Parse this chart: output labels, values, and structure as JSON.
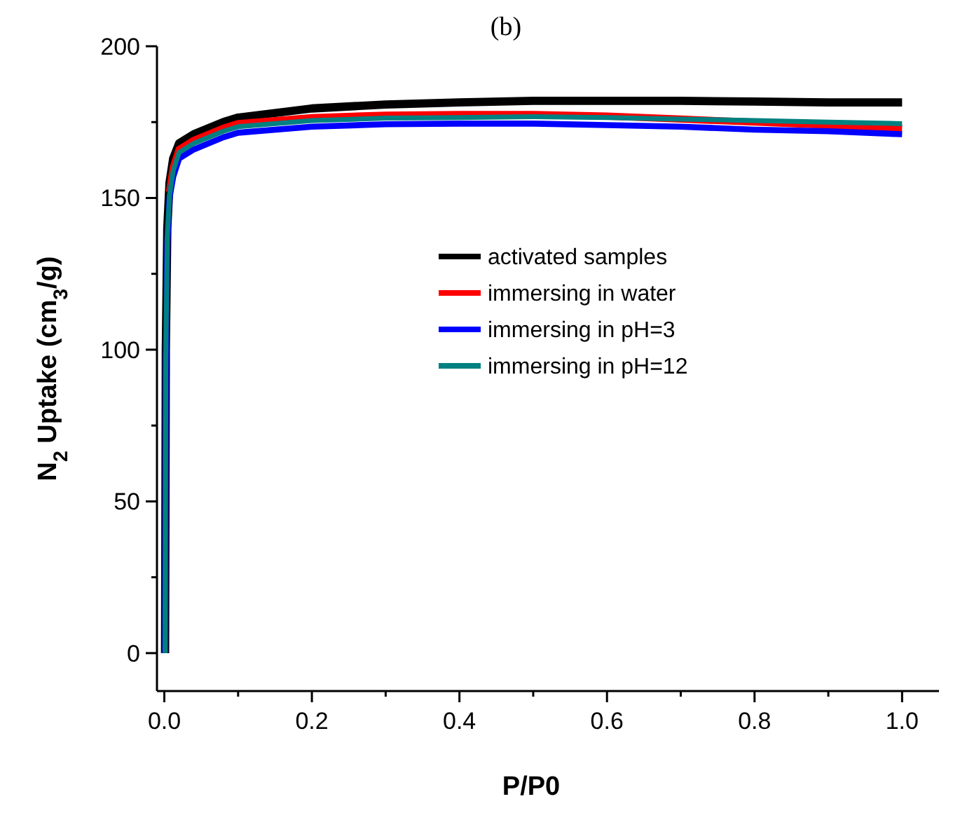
{
  "chart_data": {
    "type": "line",
    "title": "(b)",
    "xlabel": "P/P0",
    "ylabel": "N$_{2}$ Uptake (cm$_{3}$/g)",
    "xlim": [
      -0.01,
      1.05
    ],
    "ylim": [
      -12.5,
      200
    ],
    "xticks": [
      {
        "value": 0,
        "label": "0.0"
      },
      {
        "value": 0.1,
        "label": null
      },
      {
        "value": 0.2,
        "label": "0.2"
      },
      {
        "value": 0.3,
        "label": null
      },
      {
        "value": 0.4,
        "label": "0.4"
      },
      {
        "value": 0.5,
        "label": null
      },
      {
        "value": 0.6,
        "label": "0.6"
      },
      {
        "value": 0.7,
        "label": null
      },
      {
        "value": 0.8,
        "label": "0.8"
      },
      {
        "value": 0.9,
        "label": null
      },
      {
        "value": 1,
        "label": "1.0"
      }
    ],
    "yticks": [
      0,
      {
        "value": 25,
        "label": null
      },
      50,
      {
        "value": 75,
        "label": null
      },
      100,
      {
        "value": 125,
        "label": null
      },
      150,
      {
        "value": 175,
        "label": null
      },
      200
    ],
    "grid": false,
    "legend": "center",
    "line_style": "solid",
    "series": [
      {
        "name": "activated samples",
        "color": "#000000",
        "x": [
          0.001,
          0.002,
          0.004,
          0.007,
          0.012,
          0.02,
          0.04,
          0.08,
          0.1,
          0.2,
          0.3,
          0.4,
          0.5,
          0.6,
          0.7,
          0.8,
          0.9,
          1.0
        ],
        "values": [
          0,
          100,
          140,
          155,
          163,
          168,
          171,
          175,
          176.5,
          179.5,
          180.8,
          181.5,
          182,
          182,
          182,
          181.8,
          181.5,
          181.5
        ]
      },
      {
        "name": "immersing in water",
        "color": "#ff0000",
        "x": [
          0.007,
          0.012,
          0.02,
          0.04,
          0.08,
          0.1,
          0.2,
          0.3,
          0.4,
          0.5,
          0.6,
          0.7,
          0.8,
          0.9,
          1.0
        ],
        "values": [
          152,
          160,
          166,
          169,
          173,
          174.5,
          176.5,
          177.3,
          177.5,
          177.5,
          177,
          176,
          175,
          174,
          173
        ]
      },
      {
        "name": "immersing in pH=3",
        "color": "#0000ff",
        "x": [
          0.001,
          0.002,
          0.004,
          0.007,
          0.012,
          0.02,
          0.04,
          0.08,
          0.1,
          0.2,
          0.3,
          0.4,
          0.5,
          0.6,
          0.7,
          0.8,
          0.9,
          1.0
        ],
        "values": [
          0,
          95,
          135,
          150,
          157,
          163,
          166,
          170,
          171.5,
          173.5,
          174.3,
          174.5,
          174.5,
          174,
          173.5,
          172.5,
          172,
          171
        ]
      },
      {
        "name": "immersing in pH=12",
        "color": "#008080",
        "x": [
          0.001,
          0.002,
          0.004,
          0.007,
          0.012,
          0.02,
          0.04,
          0.08,
          0.1,
          0.2,
          0.3,
          0.4,
          0.5,
          0.6,
          0.7,
          0.8,
          0.9,
          1.0
        ],
        "values": [
          0,
          97,
          137,
          151,
          159,
          165,
          168,
          172,
          173.5,
          175.5,
          176.3,
          176.5,
          176.8,
          176.5,
          176,
          175.5,
          175,
          174.5
        ]
      }
    ]
  }
}
